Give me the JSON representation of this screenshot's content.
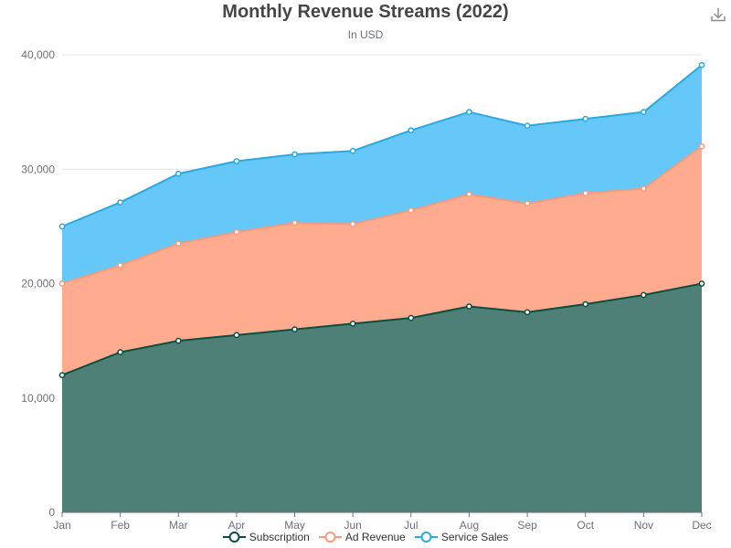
{
  "chart_data": {
    "type": "area",
    "stacked": true,
    "title": "Monthly Revenue Streams (2022)",
    "subtitle": "In USD",
    "categories": [
      "Jan",
      "Feb",
      "Mar",
      "Apr",
      "May",
      "Jun",
      "Jul",
      "Aug",
      "Sep",
      "Oct",
      "Nov",
      "Dec"
    ],
    "series": [
      {
        "name": "Subscription",
        "color": "#0b4f3f",
        "fill": "#4e8077",
        "values": [
          12000,
          14000,
          15000,
          15500,
          16000,
          16500,
          17000,
          18000,
          17500,
          18200,
          19000,
          20000
        ]
      },
      {
        "name": "Ad Revenue",
        "color": "#f79a7a",
        "fill": "#ffab8f",
        "values": [
          8000,
          7600,
          8500,
          9000,
          9300,
          8700,
          9400,
          9800,
          9500,
          9700,
          9300,
          12000
        ]
      },
      {
        "name": "Service Sales",
        "color": "#2aa9e0",
        "fill": "#66c8f8",
        "values": [
          5000,
          5500,
          6100,
          6200,
          6000,
          6400,
          7000,
          7200,
          6800,
          6500,
          6700,
          7100
        ]
      }
    ],
    "y_axis": {
      "min": 0,
      "max": 40000,
      "ticks": [
        "0",
        "10,000",
        "20,000",
        "30,000",
        "40,000"
      ],
      "grid": true
    },
    "legend_position": "bottom-center"
  },
  "toolbar": {
    "download_icon": "download-icon"
  }
}
